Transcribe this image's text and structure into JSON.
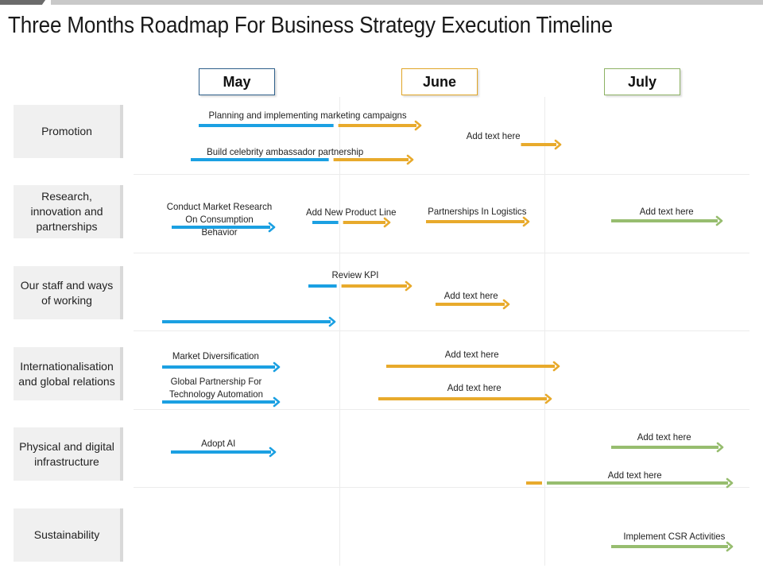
{
  "title": "Three Months Roadmap For Business Strategy Execution Timeline",
  "colors": {
    "may": "#1ba0e2",
    "june": "#e8aa2c",
    "july": "#97bd6f"
  },
  "months": [
    "May",
    "June",
    "July"
  ],
  "rows": [
    "Promotion",
    "Research, innovation and partnerships",
    "Our staff and ways of working",
    "Internationalisation and global relations",
    "Physical and digital infrastructure",
    "Sustainability"
  ],
  "tasks": [
    {
      "label": "Planning and implementing marketing campaigns",
      "segments": [
        [
          "may",
          0.0,
          0.69
        ],
        [
          "june",
          0.69,
          1.1
        ]
      ]
    },
    {
      "label": "Add text here",
      "segments": [
        [
          "june",
          1.12,
          1.7
        ]
      ]
    },
    {
      "label": "Build celebrity ambassador partnership",
      "segments": [
        [
          "may",
          0.0,
          0.68
        ],
        [
          "june",
          0.68,
          1.06
        ]
      ]
    },
    {
      "label": "Conduct Market Research On Consumption Behavior",
      "segments": [
        [
          "may",
          0.0,
          0.4
        ]
      ]
    },
    {
      "label": "Add New Product Line",
      "segments": [
        [
          "may",
          0.0,
          0.15
        ],
        [
          "june",
          0.15,
          0.38
        ]
      ]
    },
    {
      "label": "Partnerships In Logistics",
      "segments": [
        [
          "june",
          0.0,
          0.5
        ]
      ]
    },
    {
      "label": "Add text here",
      "segments": [
        [
          "july",
          0.0,
          0.53
        ]
      ]
    },
    {
      "label": "Review KPI",
      "segments": [
        [
          "may",
          0.0,
          0.16
        ],
        [
          "june",
          0.16,
          0.5
        ]
      ]
    },
    {
      "label": "Add text here",
      "segments": [
        [
          "june",
          0.0,
          0.35
        ]
      ]
    },
    {
      "label": "",
      "segments": [
        [
          "may",
          0.0,
          0.85
        ]
      ]
    },
    {
      "label": "Market Diversification",
      "segments": [
        [
          "may",
          0.0,
          0.58
        ]
      ]
    },
    {
      "label": "Add text here",
      "segments": [
        [
          "june",
          0.0,
          0.85
        ]
      ]
    },
    {
      "label": "Global Partnership For Technology Automation",
      "segments": [
        [
          "may",
          0.0,
          0.58
        ]
      ]
    },
    {
      "label": "Add text here",
      "segments": [
        [
          "june",
          0.0,
          0.85
        ]
      ]
    },
    {
      "label": "Adopt AI",
      "segments": [
        [
          "may",
          0.0,
          0.51
        ]
      ]
    },
    {
      "label": "Add text here",
      "segments": [
        [
          "july",
          0.0,
          0.55
        ]
      ]
    },
    {
      "label": "Add text here",
      "segments": [
        [
          "june",
          0.0,
          0.1
        ],
        [
          "july",
          0.1,
          1.0
        ]
      ]
    },
    {
      "label": "Implement CSR Activities",
      "segments": [
        [
          "july",
          0.0,
          0.6
        ]
      ]
    }
  ]
}
